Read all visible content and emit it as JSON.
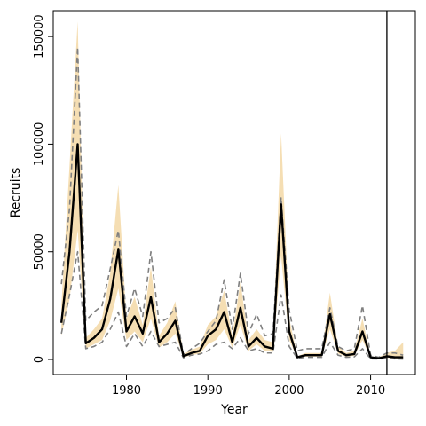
{
  "chart_data": {
    "type": "line",
    "xlabel": "Year",
    "ylabel": "Recruits",
    "xlim": [
      1971,
      2015.5
    ],
    "ylim": [
      -7000,
      162000
    ],
    "x_ticks": [
      1980,
      1990,
      2000,
      2010
    ],
    "y_ticks": [
      0,
      50000,
      100000,
      150000
    ],
    "grid": false,
    "band_color": "#f5deb3",
    "line_color": "#000000",
    "dashed_color": "#808080",
    "vline_x": 2012,
    "x": [
      1972,
      1973,
      1974,
      1975,
      1976,
      1977,
      1978,
      1979,
      1980,
      1981,
      1982,
      1983,
      1984,
      1985,
      1986,
      1987,
      1988,
      1989,
      1990,
      1991,
      1992,
      1993,
      1994,
      1995,
      1996,
      1997,
      1998,
      1999,
      2000,
      2001,
      2002,
      2003,
      2004,
      2005,
      2006,
      2007,
      2008,
      2009,
      2010,
      2011,
      2012,
      2013,
      2014
    ],
    "series": [
      {
        "role": "estimate",
        "values": [
          17000,
          50000,
          100000,
          7500,
          10000,
          14000,
          28000,
          51000,
          13000,
          20000,
          12000,
          29000,
          8000,
          12000,
          18000,
          1500,
          3000,
          4000,
          11000,
          14000,
          22000,
          8000,
          24000,
          6000,
          10000,
          6000,
          5000,
          72000,
          13000,
          1000,
          2000,
          2000,
          2000,
          21000,
          4000,
          2000,
          2500,
          13000,
          1000,
          500,
          1500,
          1000,
          1000
        ]
      },
      {
        "role": "band_upper",
        "values": [
          25000,
          90000,
          157000,
          10000,
          14000,
          19000,
          40000,
          81000,
          19000,
          29000,
          16000,
          43000,
          11000,
          17000,
          27000,
          2500,
          4500,
          6000,
          16000,
          20000,
          32000,
          11000,
          36000,
          9000,
          14000,
          9000,
          8000,
          105000,
          19000,
          1500,
          3000,
          3000,
          3000,
          31000,
          6000,
          3000,
          4000,
          19000,
          1500,
          1000,
          3000,
          4000,
          8000
        ]
      },
      {
        "role": "band_lower",
        "values": [
          11000,
          28000,
          60000,
          5000,
          7000,
          9000,
          18000,
          33000,
          9000,
          13000,
          8000,
          19000,
          5500,
          8000,
          12000,
          1000,
          2000,
          2700,
          7000,
          9000,
          14000,
          5500,
          16000,
          4000,
          7000,
          4000,
          3500,
          48000,
          9000,
          700,
          1300,
          1300,
          1300,
          14000,
          2700,
          1300,
          1700,
          9000,
          700,
          300,
          800,
          400,
          200
        ]
      },
      {
        "role": "dashed_upper",
        "values": [
          35000,
          70000,
          145000,
          18000,
          22000,
          25000,
          42000,
          60000,
          20000,
          33000,
          20000,
          50000,
          17000,
          19000,
          24000,
          2200,
          5000,
          7500,
          13000,
          18000,
          37000,
          14000,
          40000,
          12000,
          21000,
          11000,
          12000,
          75000,
          23000,
          4000,
          5000,
          5000,
          5000,
          24000,
          6000,
          4000,
          5000,
          25000,
          2000,
          1000,
          3000,
          3000,
          2000
        ]
      },
      {
        "role": "dashed_lower",
        "values": [
          12000,
          30000,
          50000,
          5000,
          6000,
          8000,
          14000,
          22000,
          6000,
          12000,
          6000,
          13000,
          6000,
          7000,
          8000,
          800,
          2000,
          2500,
          4000,
          7000,
          8000,
          5000,
          10000,
          4000,
          5000,
          3000,
          3000,
          30000,
          6000,
          500,
          1000,
          1000,
          1000,
          8000,
          2000,
          1000,
          1200,
          5000,
          300,
          200,
          500,
          300,
          200
        ]
      }
    ]
  }
}
